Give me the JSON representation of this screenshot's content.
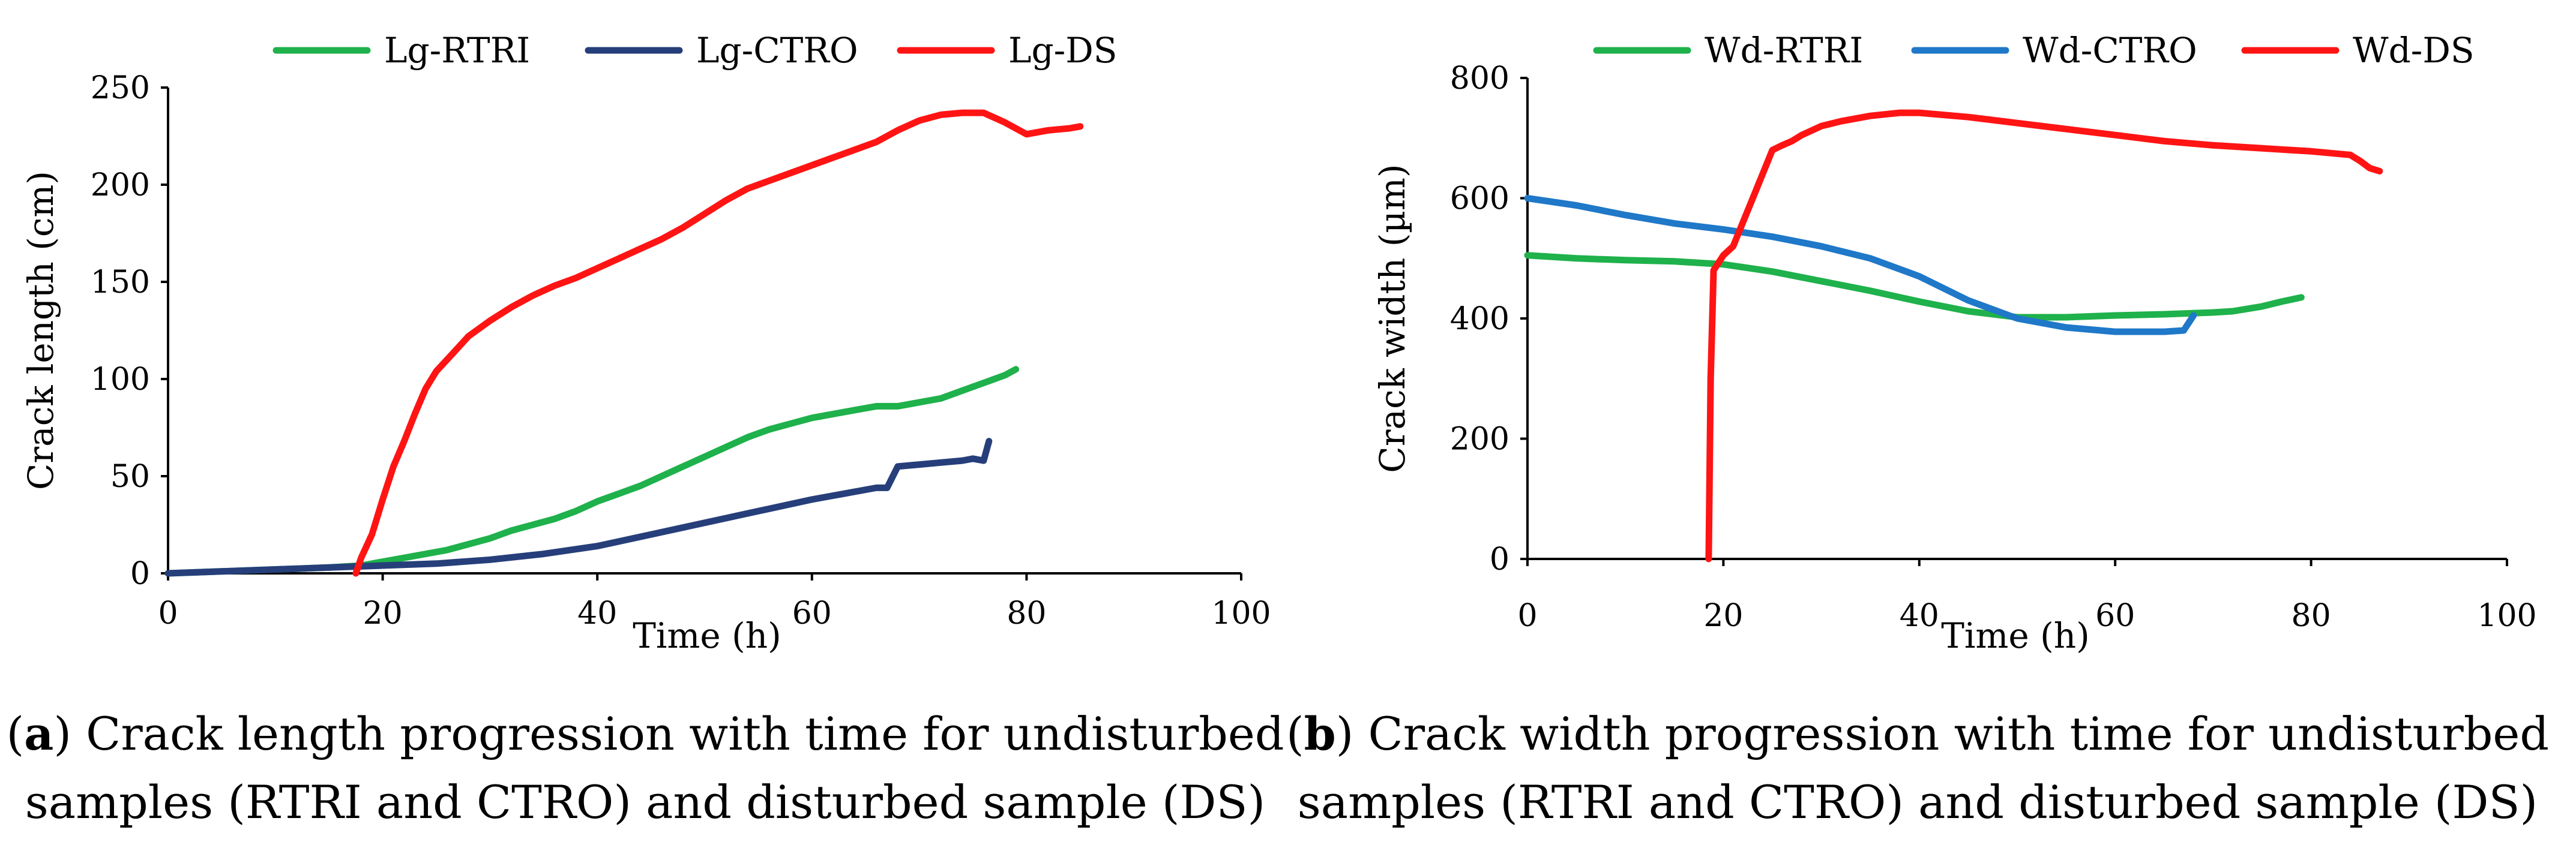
{
  "chart_data": [
    {
      "type": "line",
      "panel": "a",
      "xlabel": "Time (h)",
      "ylabel": "Crack length (cm)",
      "xlim": [
        0,
        100
      ],
      "ylim": [
        0,
        250
      ],
      "xticks": [
        0,
        20,
        40,
        60,
        80,
        100
      ],
      "yticks": [
        0,
        50,
        100,
        150,
        200,
        250
      ],
      "legend_position": "top",
      "caption": {
        "letter": "a",
        "line1_rest": ") Crack length progression with time for undisturbed",
        "line2": "samples (RTRI and CTRO) and disturbed sample (DS)"
      },
      "series": [
        {
          "name": "Lg-RTRI",
          "color": "#1fb14b",
          "x": [
            0,
            5,
            10,
            15,
            18,
            20,
            22,
            24,
            26,
            28,
            30,
            32,
            34,
            36,
            38,
            40,
            42,
            44,
            46,
            48,
            50,
            52,
            54,
            56,
            58,
            60,
            62,
            64,
            66,
            68,
            70,
            72,
            74,
            76,
            78,
            79
          ],
          "y": [
            0,
            1,
            2,
            3,
            4,
            6,
            8,
            10,
            12,
            15,
            18,
            22,
            25,
            28,
            32,
            37,
            41,
            45,
            50,
            55,
            60,
            65,
            70,
            74,
            77,
            80,
            82,
            84,
            86,
            86,
            88,
            90,
            94,
            98,
            102,
            105
          ]
        },
        {
          "name": "Lg-CTRO",
          "color": "#263f7a",
          "x": [
            0,
            5,
            10,
            15,
            20,
            25,
            30,
            35,
            40,
            45,
            50,
            55,
            60,
            62,
            64,
            66,
            67,
            68,
            70,
            72,
            74,
            75,
            76,
            76.5
          ],
          "y": [
            0,
            1,
            2,
            3,
            4,
            5,
            7,
            10,
            14,
            20,
            26,
            32,
            38,
            40,
            42,
            44,
            44,
            55,
            56,
            57,
            58,
            59,
            58,
            68
          ]
        },
        {
          "name": "Lg-DS",
          "color": "#ff1414",
          "x": [
            17.5,
            18,
            19,
            20,
            21,
            22,
            23,
            24,
            25,
            26,
            27,
            28,
            30,
            32,
            34,
            36,
            38,
            40,
            42,
            44,
            46,
            48,
            50,
            52,
            54,
            56,
            58,
            60,
            62,
            64,
            66,
            68,
            70,
            72,
            74,
            76,
            78,
            80,
            82,
            84,
            85
          ],
          "y": [
            0,
            8,
            20,
            38,
            55,
            68,
            82,
            95,
            104,
            110,
            116,
            122,
            130,
            137,
            143,
            148,
            152,
            157,
            162,
            167,
            172,
            178,
            185,
            192,
            198,
            202,
            206,
            210,
            214,
            218,
            222,
            228,
            233,
            236,
            237,
            237,
            232,
            226,
            228,
            229,
            230
          ]
        }
      ]
    },
    {
      "type": "line",
      "panel": "b",
      "xlabel": "Time (h)",
      "ylabel": "Crack width (µm)",
      "xlim": [
        0,
        100
      ],
      "ylim": [
        0,
        800
      ],
      "xticks": [
        0,
        20,
        40,
        60,
        80,
        100
      ],
      "yticks": [
        0,
        200,
        400,
        600,
        800
      ],
      "legend_position": "top",
      "caption": {
        "letter": "b",
        "line1_rest": ") Crack width progression with time for undisturbed",
        "line2": "samples (RTRI and CTRO) and disturbed sample (DS)"
      },
      "series": [
        {
          "name": "Wd-RTRI",
          "color": "#1fb14b",
          "x": [
            0,
            5,
            10,
            15,
            20,
            25,
            30,
            35,
            40,
            45,
            50,
            55,
            60,
            65,
            70,
            72,
            75,
            77,
            79
          ],
          "y": [
            505,
            500,
            497,
            495,
            490,
            478,
            462,
            446,
            428,
            412,
            402,
            402,
            405,
            407,
            410,
            412,
            420,
            428,
            435
          ]
        },
        {
          "name": "Wd-CTRO",
          "color": "#1f78c8",
          "x": [
            0,
            5,
            10,
            15,
            20,
            25,
            30,
            35,
            40,
            45,
            50,
            55,
            60,
            65,
            67,
            68
          ],
          "y": [
            600,
            588,
            572,
            558,
            548,
            536,
            520,
            500,
            470,
            430,
            400,
            385,
            378,
            378,
            380,
            405
          ]
        },
        {
          "name": "Wd-DS",
          "color": "#ff1414",
          "x": [
            18.5,
            18.7,
            19,
            20,
            21,
            22,
            23,
            24,
            25,
            26,
            27,
            28,
            30,
            32,
            35,
            38,
            40,
            45,
            50,
            55,
            60,
            65,
            70,
            75,
            80,
            84,
            85,
            86,
            87
          ],
          "y": [
            0,
            300,
            480,
            505,
            520,
            560,
            600,
            640,
            680,
            688,
            695,
            705,
            720,
            728,
            737,
            742,
            742,
            735,
            725,
            715,
            705,
            695,
            688,
            683,
            678,
            672,
            662,
            650,
            645
          ]
        }
      ]
    }
  ]
}
